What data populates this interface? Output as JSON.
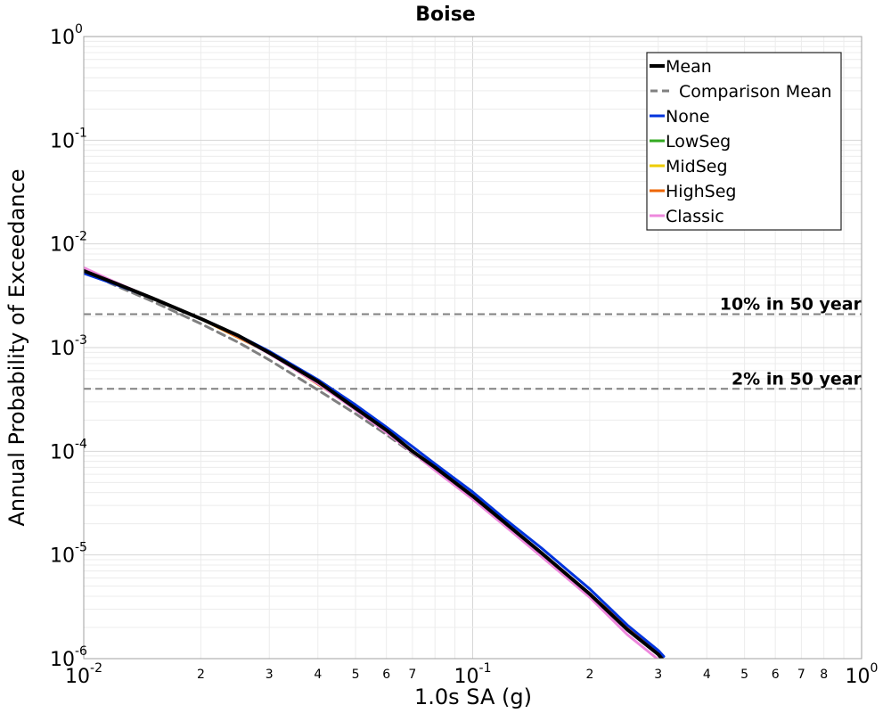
{
  "chart_data": {
    "type": "line",
    "title": "Boise",
    "xlabel": "1.0s SA (g)",
    "ylabel": "Annual Probability of Exceedance",
    "xscale": "log",
    "yscale": "log",
    "xlim": [
      0.01,
      1.0
    ],
    "ylim": [
      1e-06,
      1.0
    ],
    "grid": true,
    "legend_position": "top-right",
    "x_major_ticks": [
      {
        "value": 0.01,
        "base": "10",
        "exp": "-2"
      },
      {
        "value": 0.1,
        "base": "10",
        "exp": "-1"
      },
      {
        "value": 1.0,
        "base": "10",
        "exp": "0"
      }
    ],
    "x_minor_ticks": [
      {
        "value": 0.02,
        "label": "2"
      },
      {
        "value": 0.03,
        "label": "3"
      },
      {
        "value": 0.04,
        "label": "4"
      },
      {
        "value": 0.05,
        "label": "5"
      },
      {
        "value": 0.06,
        "label": "6"
      },
      {
        "value": 0.07,
        "label": "7"
      },
      {
        "value": 0.2,
        "label": "2"
      },
      {
        "value": 0.3,
        "label": "3"
      },
      {
        "value": 0.4,
        "label": "4"
      },
      {
        "value": 0.5,
        "label": "5"
      },
      {
        "value": 0.6,
        "label": "6"
      },
      {
        "value": 0.7,
        "label": "7"
      },
      {
        "value": 0.8,
        "label": "8"
      }
    ],
    "y_major_ticks": [
      {
        "value": 1.0,
        "base": "10",
        "exp": "0"
      },
      {
        "value": 0.1,
        "base": "10",
        "exp": "-1"
      },
      {
        "value": 0.01,
        "base": "10",
        "exp": "-2"
      },
      {
        "value": 0.001,
        "base": "10",
        "exp": "-3"
      },
      {
        "value": 0.0001,
        "base": "10",
        "exp": "-4"
      },
      {
        "value": 1e-05,
        "base": "10",
        "exp": "-5"
      },
      {
        "value": 1e-06,
        "base": "10",
        "exp": "-6"
      }
    ],
    "reference_lines": [
      {
        "label": "10% in 50 year",
        "y": 0.0021,
        "color": "#808080"
      },
      {
        "label": "2% in 50 year",
        "y": 0.0004,
        "color": "#808080"
      }
    ],
    "series": [
      {
        "name": "Mean",
        "color": "#000000",
        "style": "solid",
        "weight": "heavy",
        "x": [
          0.01,
          0.012,
          0.015,
          0.02,
          0.025,
          0.03,
          0.04,
          0.05,
          0.06,
          0.07,
          0.08,
          0.1,
          0.12,
          0.15,
          0.2,
          0.25,
          0.3,
          0.31
        ],
        "y": [
          0.0055,
          0.0042,
          0.003,
          0.0019,
          0.0013,
          0.00089,
          0.00047,
          0.00026,
          0.00016,
          0.0001,
          7e-05,
          3.7e-05,
          2.1e-05,
          1.05e-05,
          4.2e-06,
          1.9e-06,
          1.1e-06,
          9.5e-07
        ]
      },
      {
        "name": "Comparison Mean",
        "color": "#808080",
        "style": "dashed",
        "weight": "normal",
        "x": [
          0.01,
          0.012,
          0.015,
          0.02,
          0.025,
          0.03,
          0.04,
          0.05,
          0.06,
          0.07,
          0.08,
          0.1
        ],
        "y": [
          0.0055,
          0.004,
          0.0028,
          0.0017,
          0.00112,
          0.00076,
          0.00039,
          0.00023,
          0.000145,
          9.55e-05,
          6.65e-05,
          3.55e-05
        ]
      },
      {
        "name": "None",
        "color": "#0033dd",
        "style": "solid",
        "weight": "normal",
        "x": [
          0.01,
          0.012,
          0.015,
          0.02,
          0.025,
          0.03,
          0.04,
          0.05,
          0.06,
          0.07,
          0.08,
          0.1,
          0.12,
          0.15,
          0.2,
          0.25,
          0.3,
          0.31
        ],
        "y": [
          0.0052,
          0.0041,
          0.003,
          0.0019,
          0.00131,
          0.00092,
          0.00049,
          0.00028,
          0.000171,
          0.000111,
          7.55e-05,
          4.05e-05,
          2.28e-05,
          1.17e-05,
          4.7e-06,
          2.1e-06,
          1.2e-06,
          1.05e-06
        ]
      },
      {
        "name": "LowSeg",
        "color": "#33aa22",
        "style": "solid",
        "weight": "normal",
        "x": [
          0.01,
          0.015,
          0.02,
          0.03,
          0.05,
          0.1,
          0.2,
          0.3
        ],
        "y": [
          0.0054,
          0.003,
          0.0019,
          0.00089,
          0.00026,
          3.7e-05,
          4.2e-06,
          1.1e-06
        ]
      },
      {
        "name": "MidSeg",
        "color": "#eecc00",
        "style": "solid",
        "weight": "normal",
        "x": [
          0.01,
          0.015,
          0.02,
          0.03,
          0.05,
          0.1,
          0.2,
          0.3
        ],
        "y": [
          0.0054,
          0.003,
          0.0019,
          0.00089,
          0.00026,
          3.7e-05,
          4.2e-06,
          1.1e-06
        ]
      },
      {
        "name": "HighSeg",
        "color": "#ee6600",
        "style": "solid",
        "weight": "normal",
        "x": [
          0.01,
          0.015,
          0.02,
          0.03,
          0.05,
          0.1,
          0.2,
          0.3
        ],
        "y": [
          0.0055,
          0.003,
          0.0019,
          0.00089,
          0.00026,
          3.7e-05,
          4.2e-06,
          1.1e-06
        ]
      },
      {
        "name": "Classic",
        "color": "#ee88dd",
        "style": "solid",
        "weight": "normal",
        "x": [
          0.01,
          0.012,
          0.015,
          0.02,
          0.025,
          0.03,
          0.04,
          0.05,
          0.06,
          0.07,
          0.08,
          0.1,
          0.12,
          0.15,
          0.2,
          0.25,
          0.3,
          0.305
        ],
        "y": [
          0.0059,
          0.0043,
          0.003,
          0.0019,
          0.00128,
          0.00087,
          0.00045,
          0.00025,
          0.000152,
          9.75e-05,
          6.55e-05,
          3.45e-05,
          1.95e-05,
          9.7e-06,
          3.9e-06,
          1.7e-06,
          9.8e-07,
          9.3e-07
        ]
      }
    ]
  }
}
